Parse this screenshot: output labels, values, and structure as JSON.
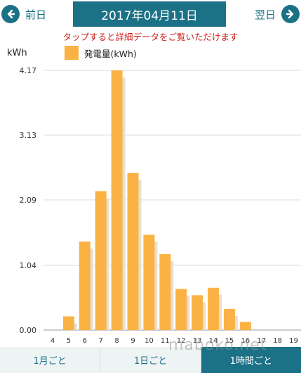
{
  "header": {
    "prev_label": "前日",
    "date": "2017年04月11日",
    "next_label": "翌日"
  },
  "notice": "タップすると詳細データをご覧いただけます",
  "tabs": [
    {
      "label": "1月ごと",
      "active": false
    },
    {
      "label": "1日ごと",
      "active": false
    },
    {
      "label": "1時間ごと",
      "active": true
    }
  ],
  "watermark": "maboko.net",
  "colors": {
    "accent": "#1b7186",
    "bar": "#fbb244",
    "bar_shadow": "#e5e0d3",
    "notice": "#cc1f1f"
  },
  "chart_data": {
    "type": "bar",
    "unit_label": "kWh",
    "categories": [
      "4",
      "5",
      "6",
      "7",
      "8",
      "9",
      "10",
      "11",
      "12",
      "13",
      "14",
      "15",
      "16",
      "17",
      "18",
      "19"
    ],
    "series": [
      {
        "name": "発電量(kWh)",
        "values": [
          0,
          0.22,
          1.42,
          2.23,
          4.17,
          2.52,
          1.53,
          1.22,
          0.66,
          0.56,
          0.68,
          0.34,
          0.13,
          0,
          0,
          0
        ]
      }
    ],
    "yticks": [
      "0.00",
      "1.04",
      "2.09",
      "3.13",
      "4.17"
    ],
    "ylim": [
      0,
      4.17
    ],
    "grid": true,
    "legend": "top-left"
  }
}
